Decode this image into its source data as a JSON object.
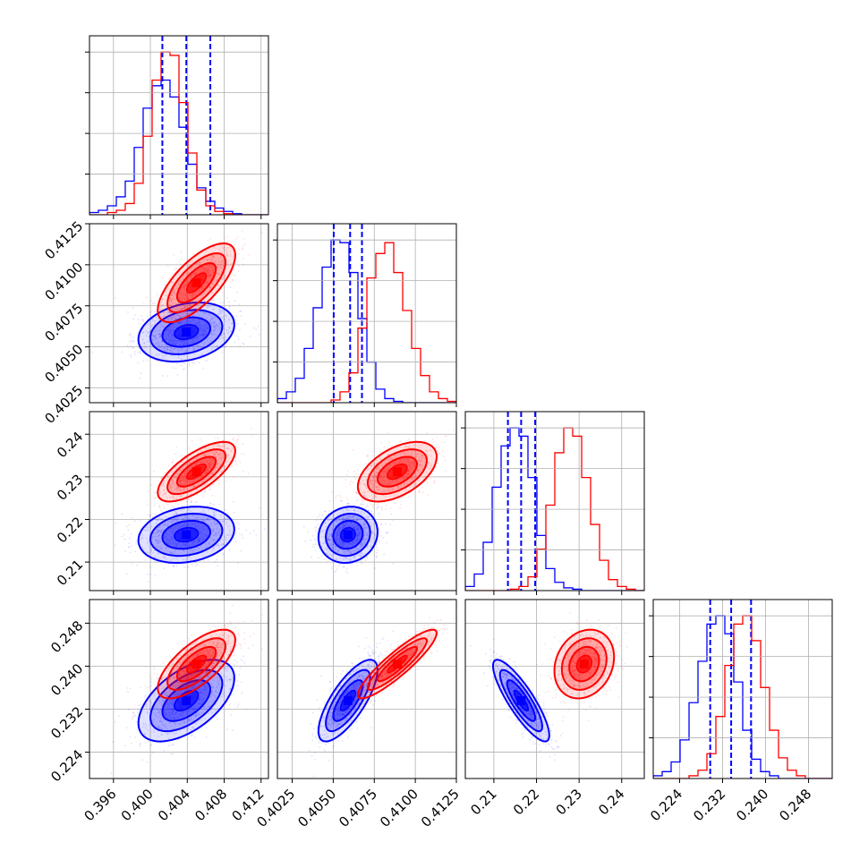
{
  "chart_data": {
    "type": "corner",
    "colors": {
      "series_a": "#0000ff",
      "series_b": "#ff0000",
      "grid": "#b0b0b0"
    },
    "grid": true,
    "parameters": [
      {
        "ticks": [
          "0.396",
          "0.400",
          "0.404",
          "0.408",
          "0.412"
        ],
        "tick_values": [
          0.396,
          0.4,
          0.404,
          0.408,
          0.412
        ],
        "range": [
          0.3934,
          0.4128
        ]
      },
      {
        "ticks": [
          "0.4025",
          "0.4050",
          "0.4075",
          "0.4100",
          "0.4125"
        ],
        "tick_values": [
          0.4025,
          0.405,
          0.4075,
          0.41,
          0.4125
        ],
        "range": [
          0.4016,
          0.4125
        ]
      },
      {
        "ticks": [
          "0.21",
          "0.22",
          "0.23",
          "0.24"
        ],
        "tick_values": [
          0.21,
          0.22,
          0.23,
          0.24
        ],
        "range": [
          0.2033,
          0.2453
        ]
      },
      {
        "ticks": [
          "0.224",
          "0.232",
          "0.240",
          "0.248"
        ],
        "tick_values": [
          0.224,
          0.232,
          0.24,
          0.248
        ],
        "range": [
          0.2191,
          0.2524
        ]
      }
    ],
    "series": [
      {
        "color": "#0000ff",
        "quantiles": [
          [
            0.4013,
            0.4039,
            0.4065
          ],
          [
            0.40503,
            0.40603,
            0.40675
          ],
          [
            0.2133,
            0.2164,
            0.2197
          ],
          [
            0.2297,
            0.2336,
            0.2373
          ]
        ],
        "histograms": [
          {
            "edges_range": [
              0.3934,
              0.4128
            ],
            "counts": [
              2,
              4,
              8,
              16,
              30,
              60,
              95,
              115,
              120,
              105,
              78,
              45,
              24,
              12,
              6,
              3,
              1,
              0,
              0,
              0
            ]
          },
          {
            "edges_range": [
              0.4016,
              0.4125
            ],
            "counts": [
              3,
              8,
              18,
              40,
              70,
              100,
              120,
              118,
              96,
              62,
              30,
              10,
              3,
              1,
              0,
              0,
              0,
              0,
              0,
              0
            ]
          },
          {
            "edges_range": [
              0.2033,
              0.2453
            ],
            "counts": [
              3,
              12,
              35,
              75,
              105,
              118,
              112,
              82,
              40,
              16,
              6,
              2,
              1,
              0,
              0,
              0,
              0,
              0,
              0,
              0
            ]
          },
          {
            "edges_range": [
              0.2191,
              0.2524
            ],
            "counts": [
              2,
              5,
              12,
              28,
              55,
              85,
              112,
              118,
              105,
              70,
              35,
              14,
              5,
              2,
              0,
              0,
              0,
              0,
              0,
              0
            ]
          }
        ],
        "mean": [
          0.4039,
          0.4059,
          0.2164,
          0.2336
        ],
        "std": [
          0.0026,
          0.0009,
          0.0033,
          0.0038
        ],
        "corr": [
          [
            1,
            0.25,
            0.2,
            0.55
          ],
          [
            0.25,
            1,
            0.1,
            0.75
          ],
          [
            0.2,
            0.1,
            1,
            -0.85
          ],
          [
            0.55,
            0.75,
            -0.85,
            1
          ]
        ]
      },
      {
        "color": "#ff0000",
        "quantiles": [],
        "histograms": [
          {
            "edges_range": [
              0.3934,
              0.4128
            ],
            "counts": [
              0,
              0,
              2,
              4,
              10,
              28,
              70,
              120,
              145,
              142,
              100,
              55,
              22,
              8,
              3,
              1,
              0,
              0,
              0,
              0
            ]
          },
          {
            "edges_range": [
              0.4016,
              0.4125
            ],
            "counts": [
              0,
              0,
              0,
              0,
              0,
              0,
              2,
              8,
              22,
              55,
              92,
              110,
              118,
              96,
              68,
              40,
              20,
              8,
              3,
              1
            ]
          },
          {
            "edges_range": [
              0.2033,
              0.2453
            ],
            "counts": [
              0,
              0,
              0,
              0,
              0,
              1,
              3,
              10,
              30,
              62,
              100,
              118,
              112,
              82,
              48,
              22,
              8,
              3,
              1,
              0
            ]
          },
          {
            "edges_range": [
              0.2191,
              0.2524
            ],
            "counts": [
              0,
              0,
              0,
              0,
              2,
              6,
              18,
              45,
              82,
              112,
              118,
              100,
              66,
              35,
              15,
              6,
              2,
              0,
              0,
              0
            ]
          }
        ],
        "mean": [
          0.405,
          0.4089,
          0.2312,
          0.2404
        ],
        "std": [
          0.0021,
          0.0012,
          0.0035,
          0.0032
        ],
        "corr": [
          [
            1,
            0.7,
            0.7,
            0.7
          ],
          [
            0.7,
            1,
            0.5,
            0.9
          ],
          [
            0.7,
            0.5,
            1,
            0.2
          ],
          [
            0.7,
            0.9,
            0.2,
            1
          ]
        ]
      }
    ]
  }
}
